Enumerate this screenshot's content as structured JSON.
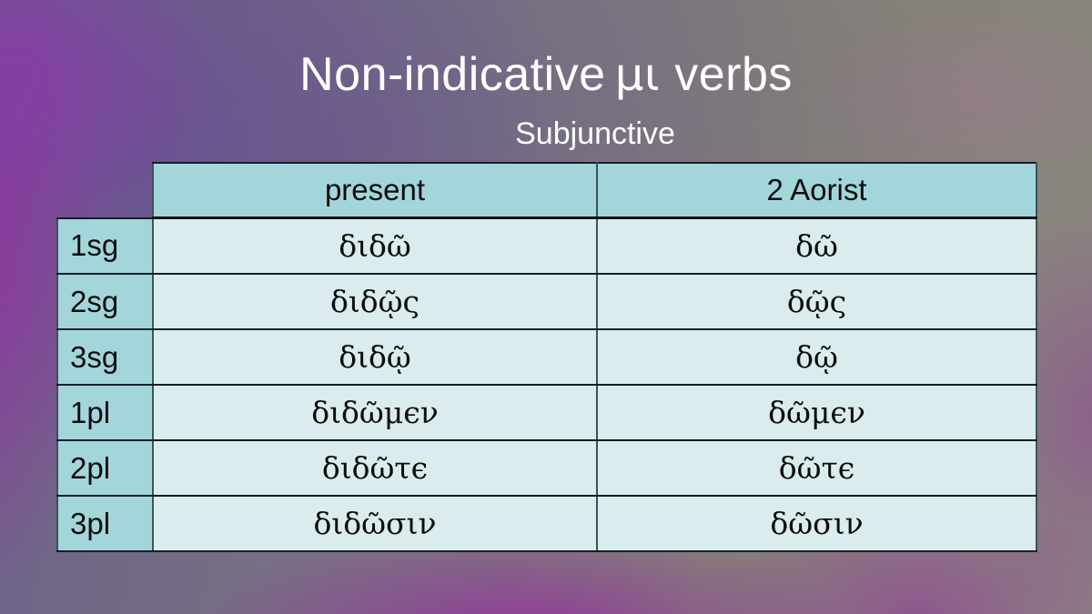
{
  "slide": {
    "title_prefix": "Non-indicative",
    "title_greek": "μι",
    "title_suffix": "verbs",
    "subtitle": "Subjunctive"
  },
  "table": {
    "columns": [
      "present",
      "2 Aorist"
    ],
    "rows": [
      {
        "label": "1sg",
        "present": "διδῶ",
        "aorist": "δῶ"
      },
      {
        "label": "2sg",
        "present": "διδῷς",
        "aorist": "δῷς"
      },
      {
        "label": "3sg",
        "present": "διδῷ",
        "aorist": "δῷ"
      },
      {
        "label": "1pl",
        "present": "διδῶμϵν",
        "aorist": "δῶμϵν"
      },
      {
        "label": "2pl",
        "present": "διδῶτϵ",
        "aorist": "δῶτϵ"
      },
      {
        "label": "3pl",
        "present": "διδῶσιν",
        "aorist": "δῶσιν"
      }
    ]
  },
  "colors": {
    "title_text": "#ffffff",
    "table_text": "#0d0d0d",
    "header_cell_bg": "#a3d6da",
    "label_cell_bg": "#a3d6da",
    "data_cell_bg": "#daeced",
    "border_horizontal": "#141f28",
    "border_vertical": "#3e5356",
    "background_gray": "#8a8680",
    "background_purple": "#6c5f8b",
    "background_magenta": "#9b2ca5"
  }
}
